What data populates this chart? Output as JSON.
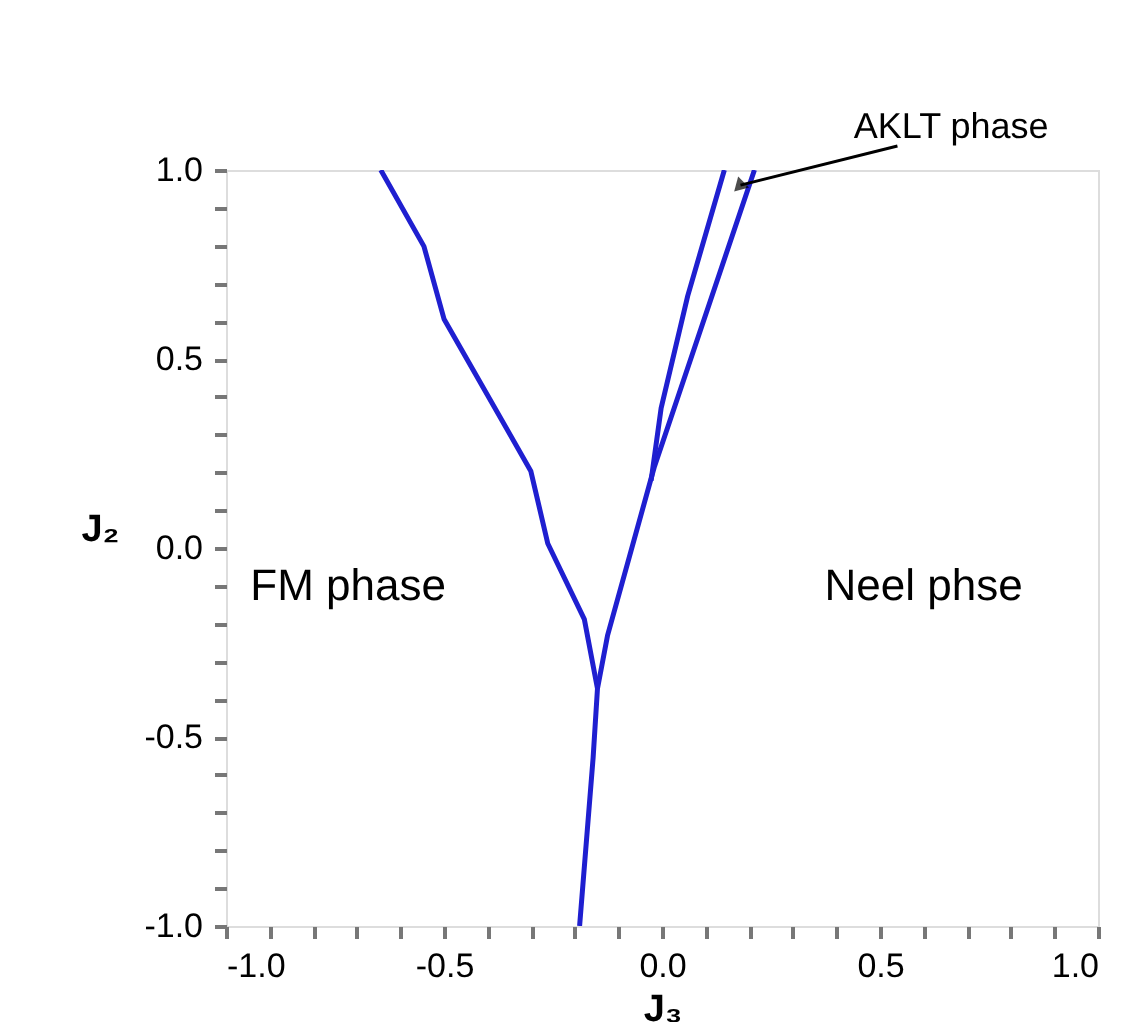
{
  "chart_data": {
    "type": "line",
    "xlabel": "J₃",
    "ylabel": "J₂",
    "series": [
      {
        "color": "#1f1fd0",
        "x": [
          -0.645,
          -0.546,
          -0.5,
          -0.301,
          -0.262,
          -0.178,
          -0.148,
          -0.158,
          -0.189
        ],
        "values": [
          1.0,
          0.798,
          0.606,
          0.204,
          0.012,
          -0.189,
          -0.372,
          -0.555,
          -1.0
        ]
      },
      {
        "color": "#1f1fd0",
        "x": [
          0.212,
          -0.018,
          -0.125,
          -0.148
        ],
        "values": [
          1.0,
          0.213,
          -0.232,
          -0.372
        ]
      },
      {
        "color": "#1f1fd0",
        "x": [
          0.143,
          0.059,
          -0.002,
          -0.025
        ],
        "values": [
          1.0,
          0.667,
          0.37,
          0.178
        ]
      }
    ],
    "xlim": [
      -1.0,
      1.0
    ],
    "ylim": [
      -1.0,
      1.0
    ],
    "xticks": [
      {
        "value": -1.0,
        "label": "-1.0"
      },
      {
        "value": -0.9,
        "label": null
      },
      {
        "value": -0.8,
        "label": null
      },
      {
        "value": -0.7,
        "label": null
      },
      {
        "value": -0.6,
        "label": null
      },
      {
        "value": -0.5,
        "label": "-0.5"
      },
      {
        "value": -0.4,
        "label": null
      },
      {
        "value": -0.3,
        "label": null
      },
      {
        "value": -0.2,
        "label": null
      },
      {
        "value": -0.1,
        "label": null
      },
      {
        "value": 0.0,
        "label": "0.0"
      },
      {
        "value": 0.1,
        "label": null
      },
      {
        "value": 0.2,
        "label": null
      },
      {
        "value": 0.3,
        "label": null
      },
      {
        "value": 0.4,
        "label": null
      },
      {
        "value": 0.5,
        "label": "0.5"
      },
      {
        "value": 0.6,
        "label": null
      },
      {
        "value": 0.7,
        "label": null
      },
      {
        "value": 0.8,
        "label": null
      },
      {
        "value": 0.9,
        "label": null
      },
      {
        "value": 1.0,
        "label": "1.0"
      }
    ],
    "yticks": [
      {
        "value": -1.0,
        "label": "-1.0"
      },
      {
        "value": -0.9,
        "label": null
      },
      {
        "value": -0.8,
        "label": null
      },
      {
        "value": -0.7,
        "label": null
      },
      {
        "value": -0.6,
        "label": null
      },
      {
        "value": -0.5,
        "label": "-0.5"
      },
      {
        "value": -0.4,
        "label": null
      },
      {
        "value": -0.3,
        "label": null
      },
      {
        "value": -0.2,
        "label": null
      },
      {
        "value": -0.1,
        "label": null
      },
      {
        "value": 0.0,
        "label": "0.0"
      },
      {
        "value": 0.1,
        "label": null
      },
      {
        "value": 0.2,
        "label": null
      },
      {
        "value": 0.3,
        "label": null
      },
      {
        "value": 0.4,
        "label": null
      },
      {
        "value": 0.5,
        "label": "0.5"
      },
      {
        "value": 0.6,
        "label": null
      },
      {
        "value": 0.7,
        "label": null
      },
      {
        "value": 0.8,
        "label": null
      },
      {
        "value": 0.9,
        "label": null
      },
      {
        "value": 1.0,
        "label": "1.0"
      }
    ],
    "annotations": [
      "FM phase",
      "Neel phse",
      {
        "text": "AKLT phase",
        "x": 0.18,
        "y": 0.96
      }
    ],
    "grid": false,
    "marker": "none",
    "line_style": "solid"
  }
}
